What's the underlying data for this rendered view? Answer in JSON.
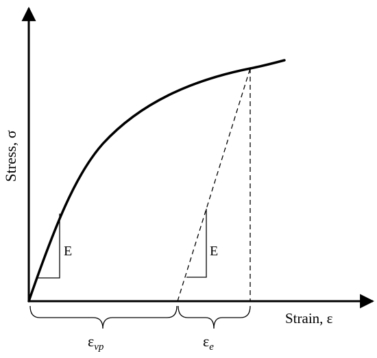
{
  "diagram": {
    "y_axis_label": "Stress, σ",
    "x_axis_label": "Strain, ε",
    "slope_label_left": "E",
    "slope_label_right": "E",
    "eps_vp": {
      "symbol": "ε",
      "subscript": "vp"
    },
    "eps_e": {
      "symbol": "ε",
      "subscript": "e"
    }
  },
  "colors": {
    "ink": "#000000",
    "background": "#ffffff"
  }
}
